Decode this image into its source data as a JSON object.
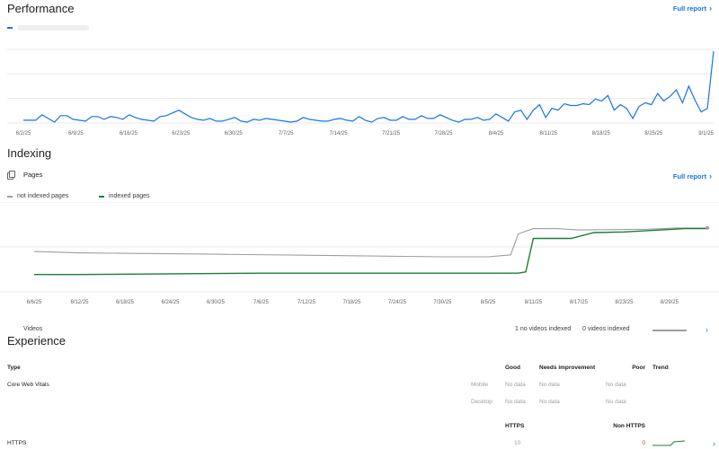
{
  "performance": {
    "title": "Performance",
    "full_report": "Full report",
    "legend_color": "#1a73e8",
    "x_ticks": [
      "6/2/25",
      "6/9/25",
      "6/16/25",
      "6/23/25",
      "6/30/25",
      "7/7/25",
      "7/14/25",
      "7/21/25",
      "7/28/25",
      "8/4/25",
      "8/11/25",
      "8/18/25",
      "8/25/25",
      "9/1/25"
    ]
  },
  "indexing": {
    "title": "Indexing",
    "full_report": "Full report",
    "pages_label": "Pages",
    "legend_not_indexed": "not indexed pages",
    "legend_indexed": "indexed pages",
    "not_indexed_color": "#9e9e9e",
    "indexed_color": "#188038",
    "x_ticks": [
      "6/6/25",
      "6/12/25",
      "6/18/25",
      "6/24/25",
      "6/30/25",
      "7/6/25",
      "7/12/25",
      "7/18/25",
      "7/24/25",
      "7/30/25",
      "8/5/25",
      "8/11/25",
      "8/17/25",
      "8/23/25",
      "8/29/25"
    ],
    "videos_label": "Videos",
    "videos_no_indexed": "1 no videos indexed",
    "videos_zero_indexed": "0 videos indexed"
  },
  "experience": {
    "title": "Experience",
    "headers": {
      "type": "Type",
      "good": "Good",
      "needs": "Needs improvement",
      "poor": "Poor",
      "trend": "Trend"
    },
    "cwv_label": "Core Web Vitals",
    "mobile": {
      "device": "Mobile",
      "good": "No data",
      "needs": "No data",
      "poor": "No data"
    },
    "desktop": {
      "device": "Desktop",
      "good": "No data",
      "needs": "No data",
      "poor": "No data"
    },
    "https_headers": {
      "https": "HTTPS",
      "non_https": "Non HTTPS"
    },
    "https_row": {
      "label": "HTTPS",
      "https_value": "10",
      "non_https_value": "0"
    }
  },
  "chart_data": [
    {
      "type": "line",
      "title": "Performance",
      "x_start": "2025-06-02",
      "x_end": "2025-09-02",
      "ylim": [
        0,
        80
      ],
      "series": [
        {
          "values": [
            3,
            3,
            3,
            9,
            5,
            1,
            8,
            8,
            4,
            3,
            2,
            7,
            7,
            4,
            7,
            6,
            4,
            9,
            6,
            4,
            3,
            2,
            7,
            8,
            11,
            14,
            10,
            6,
            4,
            3,
            5,
            2,
            2,
            4,
            6,
            2,
            1,
            4,
            3,
            5,
            4,
            3,
            2,
            1,
            2,
            6,
            4,
            3,
            2,
            2,
            4,
            5,
            3,
            2,
            7,
            3,
            1,
            5,
            6,
            3,
            3,
            7,
            4,
            4,
            8,
            5,
            5,
            9,
            6,
            3,
            1,
            4,
            4,
            6,
            3,
            4,
            10,
            6,
            2,
            12,
            14,
            4,
            14,
            20,
            6,
            16,
            14,
            21,
            19,
            19,
            21,
            20,
            26,
            24,
            30,
            14,
            20,
            16,
            5,
            18,
            22,
            20,
            32,
            24,
            29,
            36,
            22,
            40,
            25,
            12,
            16,
            78
          ]
        }
      ],
      "x_ticks": [
        "6/2/25",
        "6/9/25",
        "6/16/25",
        "6/23/25",
        "6/30/25",
        "7/7/25",
        "7/14/25",
        "7/21/25",
        "7/28/25",
        "8/4/25",
        "8/11/25",
        "8/18/25",
        "8/25/25",
        "9/1/25"
      ],
      "grid": true
    },
    {
      "type": "line",
      "title": "Indexing — Pages",
      "x_start": "2025-06-06",
      "x_end": "2025-09-03",
      "ylim": [
        0,
        100
      ],
      "series": [
        {
          "name": "not indexed pages",
          "points": [
            [
              "6/6/25",
              45
            ],
            [
              "6/12/25",
              43
            ],
            [
              "6/30/25",
              41
            ],
            [
              "7/30/25",
              37
            ],
            [
              "8/5/25",
              37
            ],
            [
              "8/8/25",
              40
            ],
            [
              "8/9/25",
              72
            ],
            [
              "8/11/25",
              80
            ],
            [
              "8/14/25",
              80
            ],
            [
              "8/17/25",
              78
            ],
            [
              "8/26/25",
              79
            ],
            [
              "8/30/25",
              81
            ],
            [
              "9/3/25",
              81
            ]
          ]
        },
        {
          "name": "indexed pages",
          "points": [
            [
              "6/6/25",
              10
            ],
            [
              "6/12/25",
              10
            ],
            [
              "7/6/25",
              12
            ],
            [
              "8/9/25",
              12
            ],
            [
              "8/10/25",
              14
            ],
            [
              "8/11/25",
              65
            ],
            [
              "8/16/25",
              65
            ],
            [
              "8/19/25",
              74
            ],
            [
              "8/23/25",
              75
            ],
            [
              "8/31/25",
              80
            ],
            [
              "9/3/25",
              80
            ]
          ]
        }
      ],
      "x_ticks": [
        "6/6/25",
        "6/12/25",
        "6/18/25",
        "6/24/25",
        "6/30/25",
        "7/6/25",
        "7/12/25",
        "7/18/25",
        "7/24/25",
        "7/30/25",
        "8/5/25",
        "8/11/25",
        "8/17/25",
        "8/23/25",
        "8/29/25"
      ],
      "grid": true
    }
  ]
}
